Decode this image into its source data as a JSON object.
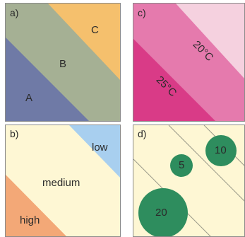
{
  "panels": [
    {
      "id": "a",
      "label": "a)",
      "zones": [
        {
          "text": "A",
          "color": "#6f7aa6"
        },
        {
          "text": "B",
          "color": "#a5b094"
        },
        {
          "text": "C",
          "color": "#f5c06d"
        }
      ]
    },
    {
      "id": "c",
      "label": "c)",
      "zones": [
        {
          "text": "25°C",
          "color": "#d93b87"
        },
        {
          "text": "20°C",
          "color": "#e57aad"
        },
        {
          "text": "",
          "color": "#f5d1df"
        }
      ]
    },
    {
      "id": "b",
      "label": "b)",
      "zones": [
        {
          "text": "high",
          "color": "#f3a877"
        },
        {
          "text": "medium",
          "color": "#fef7d4"
        },
        {
          "text": "low",
          "color": "#a8cfef"
        }
      ]
    },
    {
      "id": "d",
      "label": "d)",
      "background": "#fef7d4",
      "line_color": "#9a9a8a",
      "circle_color": "#2e8d5e",
      "circles": [
        {
          "text": "20"
        },
        {
          "text": "5"
        },
        {
          "text": "10"
        }
      ]
    }
  ]
}
